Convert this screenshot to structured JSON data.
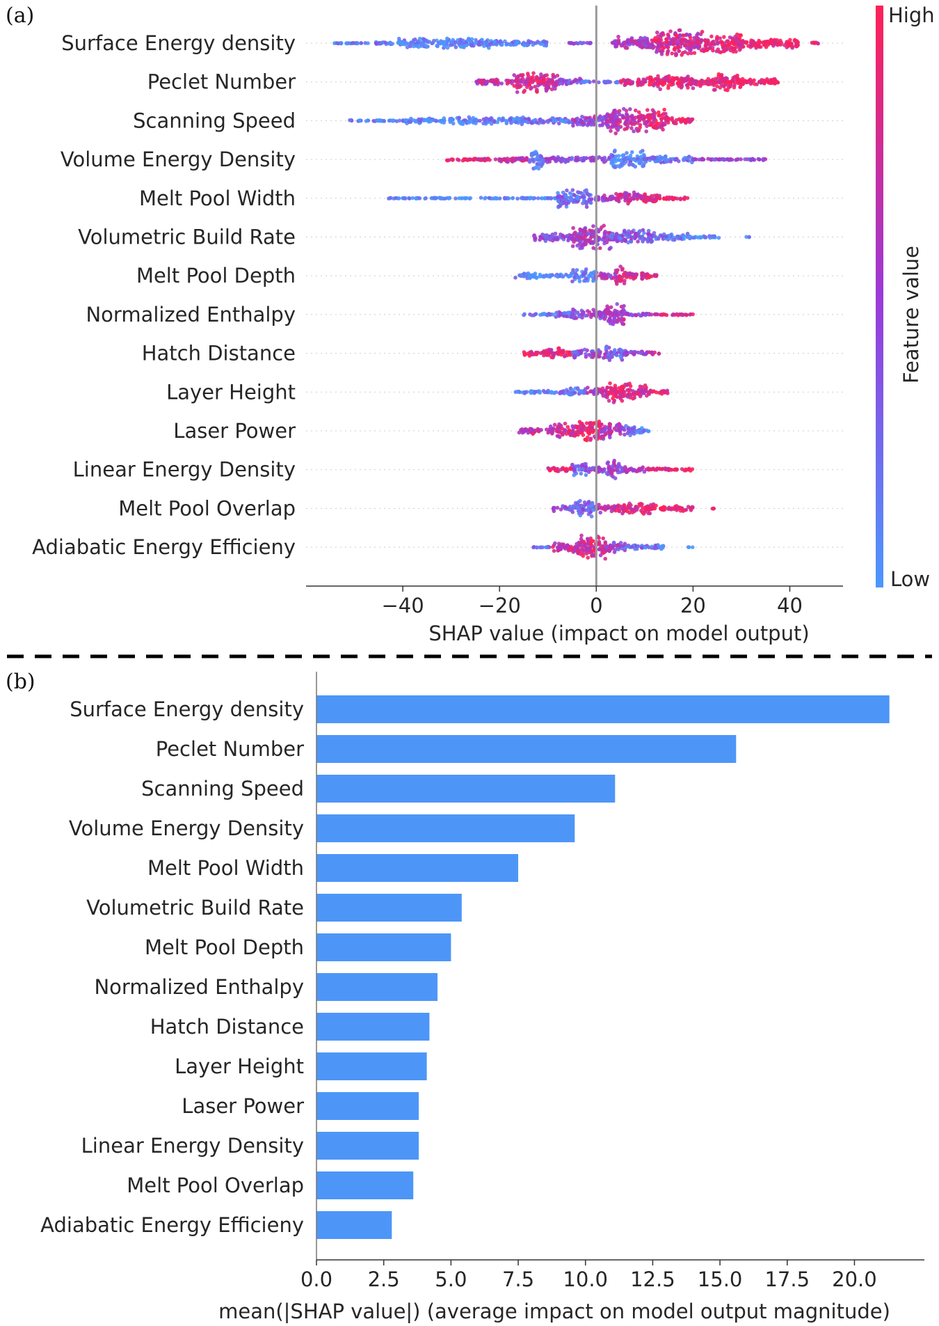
{
  "panel_labels": [
    "(a)",
    "(b)"
  ],
  "colors": {
    "low": "#4c97ff",
    "mid": "#9b3ad8",
    "high": "#ff2157",
    "bar": "#4d96f8",
    "zero_line": "#999999"
  },
  "chart_data": [
    {
      "type": "scatter",
      "subtype": "shap-beeswarm",
      "title": "",
      "xlabel": "SHAP value (impact on model output)",
      "ylabel": "",
      "xlim": [
        -60,
        51
      ],
      "xticks": [
        -40,
        -20,
        0,
        20,
        40
      ],
      "xtick_labels": [
        "−40",
        "−20",
        "0",
        "20",
        "40"
      ],
      "colorbar": {
        "label": "Feature value",
        "high_label": "High",
        "low_label": "Low"
      },
      "categories": [
        "Surface Energy density",
        "Peclet Number",
        "Scanning Speed",
        "Volume Energy Density",
        "Melt Pool Width",
        "Volumetric Build Rate",
        "Melt Pool Depth",
        "Normalized Enthalpy",
        "Hatch Distance",
        "Layer Height",
        "Laser Power",
        "Linear Energy Density",
        "Melt Pool Overlap",
        "Adiabatic Energy Efficieny"
      ],
      "series": [
        {
          "name": "Surface Energy density",
          "segments": [
            [
              -55,
              -47,
              0.03,
              0.1
            ],
            [
              -46,
              -41,
              0.1,
              0.15
            ],
            [
              -41,
              -22,
              0.35,
              0.1
            ],
            [
              -22,
              -10,
              0.2,
              0.12
            ],
            [
              -6,
              -1,
              0.04,
              0.4
            ],
            [
              3,
              12,
              0.45,
              0.6
            ],
            [
              12,
              22,
              0.9,
              0.75
            ],
            [
              22,
              30,
              0.7,
              0.85
            ],
            [
              30,
              42,
              0.35,
              0.95
            ],
            [
              44,
              46,
              0.05,
              0.9
            ]
          ]
        },
        {
          "name": "Peclet Number",
          "segments": [
            [
              -25,
              -17,
              0.2,
              0.7
            ],
            [
              -17,
              -8,
              0.75,
              0.75
            ],
            [
              -8,
              -3,
              0.25,
              0.4
            ],
            [
              -3,
              5,
              0.05,
              0.2
            ],
            [
              5,
              11,
              0.25,
              0.85
            ],
            [
              11,
              20,
              0.55,
              0.9
            ],
            [
              20,
              24,
              0.3,
              0.9
            ],
            [
              24,
              30,
              0.65,
              0.9
            ],
            [
              30,
              38,
              0.25,
              0.95
            ]
          ]
        },
        {
          "name": "Scanning Speed",
          "segments": [
            [
              -51,
              -40,
              0.04,
              0.08
            ],
            [
              -40,
              -30,
              0.2,
              0.08
            ],
            [
              -30,
              -15,
              0.25,
              0.1
            ],
            [
              -15,
              -5,
              0.2,
              0.2
            ],
            [
              -5,
              2,
              0.4,
              0.5
            ],
            [
              2,
              8,
              0.85,
              0.65
            ],
            [
              8,
              15,
              0.75,
              0.85
            ],
            [
              15,
              20,
              0.2,
              0.9
            ]
          ]
        },
        {
          "name": "Volume Energy Density",
          "segments": [
            [
              -31,
              -20,
              0.08,
              0.85
            ],
            [
              -20,
              -14,
              0.2,
              0.7
            ],
            [
              -14,
              -11,
              0.7,
              0.1
            ],
            [
              -11,
              3,
              0.2,
              0.4
            ],
            [
              3,
              10,
              0.6,
              0.1
            ],
            [
              10,
              20,
              0.25,
              0.2
            ],
            [
              20,
              35,
              0.06,
              0.45
            ]
          ]
        },
        {
          "name": "Melt Pool Width",
          "segments": [
            [
              -43,
              -27,
              0.04,
              0.05
            ],
            [
              -27,
              -26,
              0.04,
              0.05
            ],
            [
              -24,
              -8,
              0.04,
              0.05
            ],
            [
              -8,
              -1,
              0.65,
              0.25
            ],
            [
              -1,
              4,
              0.2,
              0.5
            ],
            [
              4,
              9,
              0.45,
              0.7
            ],
            [
              9,
              14,
              0.35,
              0.85
            ],
            [
              14,
              19,
              0.1,
              0.9
            ]
          ]
        },
        {
          "name": "Volumetric Build Rate",
          "segments": [
            [
              -13,
              -5,
              0.3,
              0.4
            ],
            [
              -5,
              3,
              0.85,
              0.55
            ],
            [
              3,
              12,
              0.5,
              0.35
            ],
            [
              12,
              19,
              0.25,
              0.2
            ],
            [
              19,
              26,
              0.1,
              0.1
            ],
            [
              31,
              32,
              0.02,
              0.05
            ]
          ]
        },
        {
          "name": "Melt Pool Depth",
          "segments": [
            [
              -17,
              -11,
              0.18,
              0.05
            ],
            [
              -11,
              -5,
              0.15,
              0.1
            ],
            [
              -5,
              0,
              0.45,
              0.15
            ],
            [
              0,
              4,
              0.25,
              0.55
            ],
            [
              4,
              6,
              0.7,
              0.8
            ],
            [
              6,
              11,
              0.3,
              0.75
            ],
            [
              11,
              13,
              0.1,
              0.9
            ]
          ]
        },
        {
          "name": "Normalized Enthalpy",
          "segments": [
            [
              -15,
              -9,
              0.06,
              0.15
            ],
            [
              -9,
              -5,
              0.3,
              0.25
            ],
            [
              -5,
              2,
              0.35,
              0.45
            ],
            [
              2,
              6,
              0.75,
              0.6
            ],
            [
              6,
              12,
              0.1,
              0.45
            ],
            [
              12,
              20,
              0.05,
              0.8
            ]
          ]
        },
        {
          "name": "Hatch Distance",
          "segments": [
            [
              -15,
              -10,
              0.2,
              0.85
            ],
            [
              -10,
              -5,
              0.4,
              0.85
            ],
            [
              -5,
              0,
              0.35,
              0.4
            ],
            [
              0,
              2,
              0.35,
              0.5
            ],
            [
              2,
              6,
              0.55,
              0.3
            ],
            [
              6,
              10,
              0.2,
              0.45
            ],
            [
              10,
              13,
              0.12,
              0.7
            ]
          ]
        },
        {
          "name": "Layer Height",
          "segments": [
            [
              -17,
              -8,
              0.1,
              0.05
            ],
            [
              -8,
              -2,
              0.3,
              0.2
            ],
            [
              -2,
              2,
              0.35,
              0.6
            ],
            [
              2,
              7,
              0.75,
              0.85
            ],
            [
              7,
              11,
              0.45,
              0.8
            ],
            [
              11,
              15,
              0.15,
              0.8
            ]
          ]
        },
        {
          "name": "Laser Power",
          "segments": [
            [
              -16,
              -10,
              0.2,
              0.7
            ],
            [
              -10,
              -4,
              0.5,
              0.75
            ],
            [
              -4,
              1,
              0.8,
              0.9
            ],
            [
              1,
              5,
              0.6,
              0.6
            ],
            [
              5,
              8,
              0.4,
              0.3
            ],
            [
              8,
              11,
              0.2,
              0.1
            ]
          ]
        },
        {
          "name": "Linear Energy Density",
          "segments": [
            [
              -10,
              -5,
              0.15,
              0.9
            ],
            [
              -5,
              -2,
              0.5,
              0.3
            ],
            [
              -2,
              2,
              0.2,
              0.4
            ],
            [
              2,
              5,
              0.6,
              0.5
            ],
            [
              5,
              10,
              0.2,
              0.5
            ],
            [
              10,
              20,
              0.1,
              0.95
            ]
          ]
        },
        {
          "name": "Melt Pool Overlap",
          "segments": [
            [
              -9,
              -5,
              0.2,
              0.4
            ],
            [
              -5,
              0,
              0.55,
              0.3
            ],
            [
              0,
              4,
              0.3,
              0.6
            ],
            [
              4,
              12,
              0.4,
              0.85
            ],
            [
              12,
              20,
              0.2,
              0.9
            ],
            [
              24,
              25,
              0.03,
              0.95
            ]
          ]
        },
        {
          "name": "Adiabatic Energy Efficieny",
          "segments": [
            [
              -13,
              -9,
              0.03,
              0.2
            ],
            [
              -9,
              -4,
              0.4,
              0.7
            ],
            [
              -4,
              2,
              0.85,
              0.75
            ],
            [
              2,
              6,
              0.35,
              0.5
            ],
            [
              6,
              14,
              0.15,
              0.2
            ],
            [
              19,
              20,
              0.03,
              0.05
            ]
          ]
        }
      ]
    },
    {
      "type": "bar",
      "orientation": "horizontal",
      "title": "",
      "xlabel": "mean(|SHAP value|) (average impact on model output magnitude)",
      "ylabel": "",
      "xlim": [
        0,
        22.6
      ],
      "xticks": [
        0.0,
        2.5,
        5.0,
        7.5,
        10.0,
        12.5,
        15.0,
        17.5,
        20.0
      ],
      "xtick_labels": [
        "0.0",
        "2.5",
        "5.0",
        "7.5",
        "10.0",
        "12.5",
        "15.0",
        "17.5",
        "20.0"
      ],
      "categories": [
        "Surface Energy density",
        "Peclet Number",
        "Scanning Speed",
        "Volume Energy Density",
        "Melt Pool Width",
        "Volumetric Build Rate",
        "Melt Pool Depth",
        "Normalized Enthalpy",
        "Hatch Distance",
        "Layer Height",
        "Laser Power",
        "Linear Energy Density",
        "Melt Pool Overlap",
        "Adiabatic Energy Efficieny"
      ],
      "values": [
        21.3,
        15.6,
        11.1,
        9.6,
        7.5,
        5.4,
        5.0,
        4.5,
        4.2,
        4.1,
        3.8,
        3.8,
        3.6,
        2.8
      ]
    }
  ]
}
